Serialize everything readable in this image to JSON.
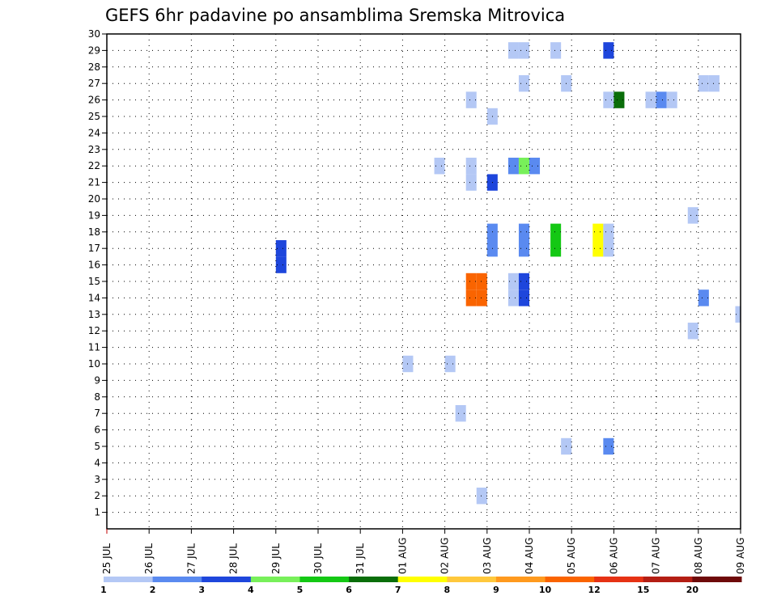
{
  "chart_data": {
    "type": "heatmap",
    "title": "GEFS 6hr padavine po ansamblima Sremska Mitrovica",
    "xlabel": "",
    "ylabel": "",
    "x_ticks": [
      "25 JUL",
      "26 JUL",
      "27 JUL",
      "28 JUL",
      "29 JUL",
      "30 JUL",
      "31 JUL",
      "01 AUG",
      "02 AUG",
      "03 AUG",
      "04 AUG",
      "05 AUG",
      "06 AUG",
      "07 AUG",
      "08 AUG",
      "09 AUG"
    ],
    "x_range_days": [
      0,
      15
    ],
    "y_ticks": [
      1,
      2,
      3,
      4,
      5,
      6,
      7,
      8,
      9,
      10,
      11,
      12,
      13,
      14,
      15,
      16,
      17,
      18,
      19,
      20,
      21,
      22,
      23,
      24,
      25,
      26,
      27,
      28,
      29,
      30
    ],
    "ylim": [
      0,
      30
    ],
    "grid": true,
    "legend": {
      "placement": "bottom",
      "labels": [
        "1",
        "2",
        "3",
        "4",
        "5",
        "6",
        "7",
        "8",
        "9",
        "10",
        "12",
        "15",
        "20"
      ],
      "colors": [
        "#b4c8f5",
        "#5a8af0",
        "#1e46dc",
        "#78f05a",
        "#14c814",
        "#0a6e0a",
        "#ffff00",
        "#ffc83c",
        "#ff9a1e",
        "#fa6400",
        "#e63214",
        "#b41e14",
        "#6e0a0a"
      ]
    },
    "cells": [
      {
        "d": 4.0,
        "h": 2,
        "m": 16,
        "c": "#1e46dc"
      },
      {
        "d": 4.0,
        "h": 2,
        "m": 17,
        "c": "#1e46dc"
      },
      {
        "d": 7.0,
        "h": 2,
        "m": 10,
        "c": "#b4c8f5"
      },
      {
        "d": 8.0,
        "h": 2,
        "m": 10,
        "c": "#b4c8f5"
      },
      {
        "d": 8.25,
        "h": 2,
        "m": 7,
        "c": "#b4c8f5"
      },
      {
        "d": 7.75,
        "h": 2,
        "m": 22,
        "c": "#b4c8f5"
      },
      {
        "d": 8.5,
        "h": 2,
        "m": 21,
        "c": "#b4c8f5"
      },
      {
        "d": 8.5,
        "h": 2,
        "m": 22,
        "c": "#b4c8f5"
      },
      {
        "d": 8.5,
        "h": 2,
        "m": 26,
        "c": "#b4c8f5"
      },
      {
        "d": 8.5,
        "h": 2,
        "m": 14,
        "c": "#fa6400"
      },
      {
        "d": 8.5,
        "h": 2,
        "m": 15,
        "c": "#fa6400"
      },
      {
        "d": 8.75,
        "h": 2,
        "m": 14,
        "c": "#fa6400"
      },
      {
        "d": 8.75,
        "h": 2,
        "m": 15,
        "c": "#fa6400"
      },
      {
        "d": 8.75,
        "h": 2,
        "m": 2,
        "c": "#b4c8f5"
      },
      {
        "d": 9.0,
        "h": 2,
        "m": 25,
        "c": "#b4c8f5"
      },
      {
        "d": 9.0,
        "h": 2,
        "m": 21,
        "c": "#1e46dc"
      },
      {
        "d": 9.0,
        "h": 2,
        "m": 17,
        "c": "#5a8af0"
      },
      {
        "d": 9.0,
        "h": 2,
        "m": 18,
        "c": "#5a8af0"
      },
      {
        "d": 9.5,
        "h": 2,
        "m": 29,
        "c": "#b4c8f5"
      },
      {
        "d": 9.75,
        "h": 2,
        "m": 29,
        "c": "#b4c8f5"
      },
      {
        "d": 9.5,
        "h": 2,
        "m": 22,
        "c": "#5a8af0"
      },
      {
        "d": 9.75,
        "h": 2,
        "m": 22,
        "c": "#78f05a"
      },
      {
        "d": 10.0,
        "h": 2,
        "m": 22,
        "c": "#5a8af0"
      },
      {
        "d": 9.75,
        "h": 2,
        "m": 27,
        "c": "#b4c8f5"
      },
      {
        "d": 9.75,
        "h": 2,
        "m": 17,
        "c": "#5a8af0"
      },
      {
        "d": 9.75,
        "h": 2,
        "m": 18,
        "c": "#5a8af0"
      },
      {
        "d": 9.5,
        "h": 2,
        "m": 14,
        "c": "#b4c8f5"
      },
      {
        "d": 9.5,
        "h": 2,
        "m": 15,
        "c": "#b4c8f5"
      },
      {
        "d": 9.75,
        "h": 2,
        "m": 14,
        "c": "#1e46dc"
      },
      {
        "d": 9.75,
        "h": 2,
        "m": 15,
        "c": "#1e46dc"
      },
      {
        "d": 10.5,
        "h": 2,
        "m": 29,
        "c": "#b4c8f5"
      },
      {
        "d": 10.5,
        "h": 2,
        "m": 17,
        "c": "#14c814"
      },
      {
        "d": 10.5,
        "h": 2,
        "m": 18,
        "c": "#14c814"
      },
      {
        "d": 10.75,
        "h": 2,
        "m": 27,
        "c": "#b4c8f5"
      },
      {
        "d": 10.75,
        "h": 2,
        "m": 5,
        "c": "#b4c8f5"
      },
      {
        "d": 11.5,
        "h": 2,
        "m": 17,
        "c": "#ffff00"
      },
      {
        "d": 11.5,
        "h": 2,
        "m": 18,
        "c": "#ffff00"
      },
      {
        "d": 11.75,
        "h": 2,
        "m": 17,
        "c": "#b4c8f5"
      },
      {
        "d": 11.75,
        "h": 2,
        "m": 18,
        "c": "#b4c8f5"
      },
      {
        "d": 11.75,
        "h": 2,
        "m": 26,
        "c": "#b4c8f5"
      },
      {
        "d": 11.75,
        "h": 2,
        "m": 29,
        "c": "#1e46dc"
      },
      {
        "d": 11.75,
        "h": 2,
        "m": 5,
        "c": "#5a8af0"
      },
      {
        "d": 12.0,
        "h": 2,
        "m": 26,
        "c": "#0a6e0a"
      },
      {
        "d": 12.75,
        "h": 2,
        "m": 26,
        "c": "#b4c8f5"
      },
      {
        "d": 13.0,
        "h": 2,
        "m": 26,
        "c": "#5a8af0"
      },
      {
        "d": 13.25,
        "h": 2,
        "m": 26,
        "c": "#b4c8f5"
      },
      {
        "d": 13.75,
        "h": 2,
        "m": 19,
        "c": "#b4c8f5"
      },
      {
        "d": 13.75,
        "h": 2,
        "m": 12,
        "c": "#b4c8f5"
      },
      {
        "d": 14.0,
        "h": 2,
        "m": 14,
        "c": "#5a8af0"
      },
      {
        "d": 14.0,
        "h": 2,
        "m": 27,
        "c": "#b4c8f5"
      },
      {
        "d": 14.25,
        "h": 2,
        "m": 27,
        "c": "#b4c8f5"
      },
      {
        "d": 14.875,
        "h": 1,
        "m": 13,
        "c": "#b4c8f5"
      }
    ]
  }
}
